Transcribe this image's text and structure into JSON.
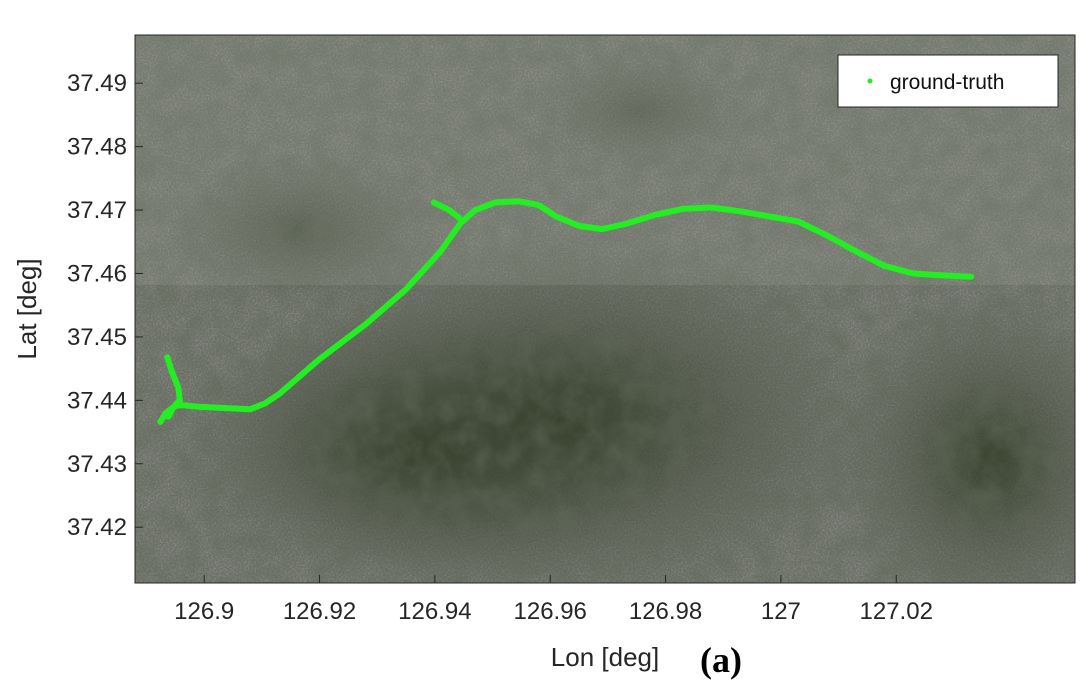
{
  "chart_data": {
    "type": "line",
    "title": "",
    "xlabel": "Lon [deg]",
    "ylabel": "Lat [deg]",
    "xlim": [
      126.888,
      127.051
    ],
    "ylim": [
      37.4112,
      37.4976
    ],
    "xticks": [
      126.9,
      126.92,
      126.94,
      126.96,
      126.98,
      127,
      127.02
    ],
    "xtick_labels": [
      "126.9",
      "126.92",
      "126.94",
      "126.96",
      "126.98",
      "127",
      "127.02"
    ],
    "yticks": [
      37.42,
      37.43,
      37.44,
      37.45,
      37.46,
      37.47,
      37.48,
      37.49
    ],
    "ytick_labels": [
      "37.42",
      "37.43",
      "37.44",
      "37.45",
      "37.46",
      "37.47",
      "37.48",
      "37.49"
    ],
    "grid": false,
    "background": "satellite imagery",
    "legend_position": "top-right",
    "panel_label": "(a)",
    "series": [
      {
        "name": "ground-truth",
        "color": "#22ee22",
        "x": [
          126.8924,
          126.8933,
          126.8948,
          126.8955,
          126.8966,
          126.899,
          126.903,
          126.908,
          126.9105,
          126.913,
          126.92,
          126.928,
          126.935,
          126.941,
          126.9445,
          126.947,
          126.9505,
          126.9545,
          126.958,
          126.961,
          126.965,
          126.969,
          126.973,
          126.978,
          126.983,
          126.988,
          126.993,
          126.998,
          127.003,
          127.008,
          127.013,
          127.018,
          127.023,
          127.028,
          127.033
        ],
        "y": [
          37.4366,
          37.438,
          37.439,
          37.4392,
          37.4392,
          37.439,
          37.4388,
          37.4386,
          37.4395,
          37.441,
          37.4465,
          37.452,
          37.4575,
          37.4635,
          37.468,
          37.47,
          37.4712,
          37.4714,
          37.4708,
          37.469,
          37.4675,
          37.467,
          37.4678,
          37.4692,
          37.4702,
          37.4704,
          37.4698,
          37.469,
          37.4682,
          37.466,
          37.4635,
          37.4612,
          37.46,
          37.4597,
          37.4595
        ]
      },
      {
        "name": "",
        "color": "#22ee22",
        "x": [
          126.8936,
          126.8944,
          126.8955,
          126.8958
        ],
        "y": [
          37.4468,
          37.4445,
          37.442,
          37.4398
        ]
      },
      {
        "name": "",
        "color": "#22ee22",
        "x": [
          126.8955,
          126.8946,
          126.8938
        ],
        "y": [
          37.4398,
          37.4388,
          37.4374
        ]
      },
      {
        "name": "",
        "color": "#22ee22",
        "x": [
          126.9398,
          126.9425,
          126.9442
        ],
        "y": [
          37.4712,
          37.47,
          37.4688
        ]
      }
    ]
  }
}
